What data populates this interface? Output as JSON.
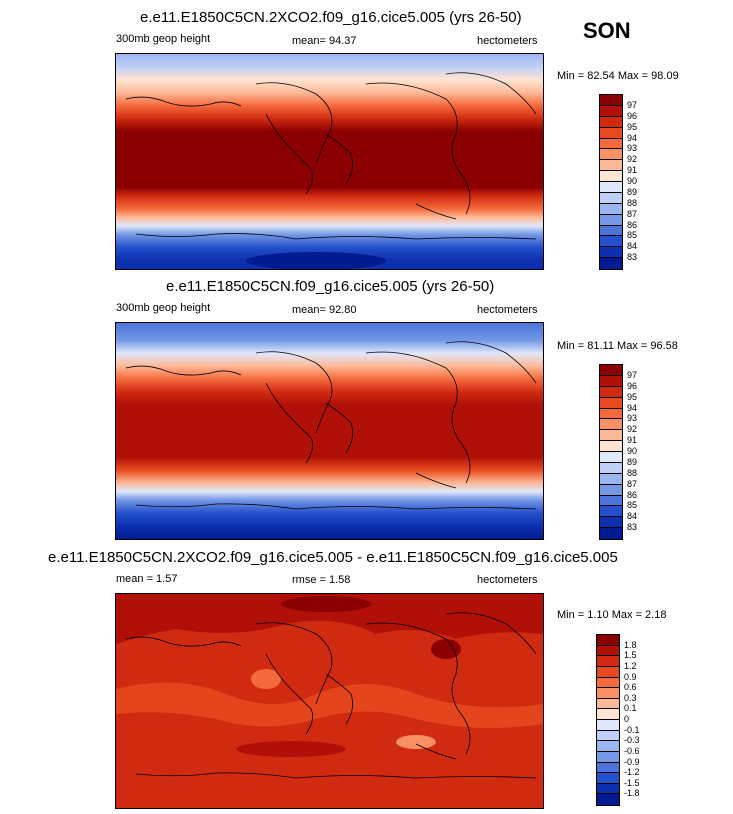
{
  "season": "SON",
  "panels": [
    {
      "title": "e.e11.E1850C5CN.2XCO2.f09_g16.cice5.005 (yrs 26-50)",
      "left_label": "300mb geop height",
      "center_label": "mean=  94.37",
      "right_label": "hectometers",
      "minmax": "Min =  82.54 Max =  98.09",
      "colorbar": {
        "labels": [
          "97",
          "96",
          "95",
          "94",
          "93",
          "92",
          "91",
          "90",
          "89",
          "88",
          "87",
          "86",
          "85",
          "84",
          "83"
        ],
        "colors": [
          "#8b0000",
          "#b01008",
          "#d02a10",
          "#e84a1e",
          "#f56a3c",
          "#fb9064",
          "#fdb896",
          "#ffe4d2",
          "#dfe8fb",
          "#bfd0f7",
          "#9ab6f0",
          "#7498e6",
          "#4a74da",
          "#2450cc",
          "#0c30b0",
          "#001c90"
        ]
      }
    },
    {
      "title": "e.e11.E1850C5CN.f09_g16.cice5.005 (yrs 26-50)",
      "left_label": "300mb geop height",
      "center_label": "mean=  92.80",
      "right_label": "hectometers",
      "minmax": "Min =  81.11 Max =  96.58",
      "colorbar": {
        "labels": [
          "97",
          "96",
          "95",
          "94",
          "93",
          "92",
          "91",
          "90",
          "89",
          "88",
          "87",
          "86",
          "85",
          "84",
          "83"
        ],
        "colors": [
          "#8b0000",
          "#b01008",
          "#d02a10",
          "#e84a1e",
          "#f56a3c",
          "#fb9064",
          "#fdb896",
          "#ffe4d2",
          "#dfe8fb",
          "#bfd0f7",
          "#9ab6f0",
          "#7498e6",
          "#4a74da",
          "#2450cc",
          "#0c30b0",
          "#001c90"
        ]
      }
    },
    {
      "title": "e.e11.E1850C5CN.2XCO2.f09_g16.cice5.005 - e.e11.E1850C5CN.f09_g16.cice5.005",
      "left_label": "mean =   1.57",
      "center_label": "rmse =   1.58",
      "right_label": "hectometers",
      "minmax": "Min =   1.10 Max =   2.18",
      "colorbar": {
        "labels": [
          "1.8",
          "1.5",
          "1.2",
          "0.9",
          "0.6",
          "0.3",
          "0.1",
          "0",
          "-0.1",
          "-0.3",
          "-0.6",
          "-0.9",
          "-1.2",
          "-1.5",
          "-1.8"
        ],
        "colors": [
          "#8b0000",
          "#b01008",
          "#d02a10",
          "#e84a1e",
          "#f56a3c",
          "#fb9064",
          "#fdb896",
          "#ffe4d2",
          "#dfe8fb",
          "#bfd0f7",
          "#9ab6f0",
          "#7498e6",
          "#4a74da",
          "#2450cc",
          "#0c30b0",
          "#001c90"
        ]
      }
    }
  ]
}
